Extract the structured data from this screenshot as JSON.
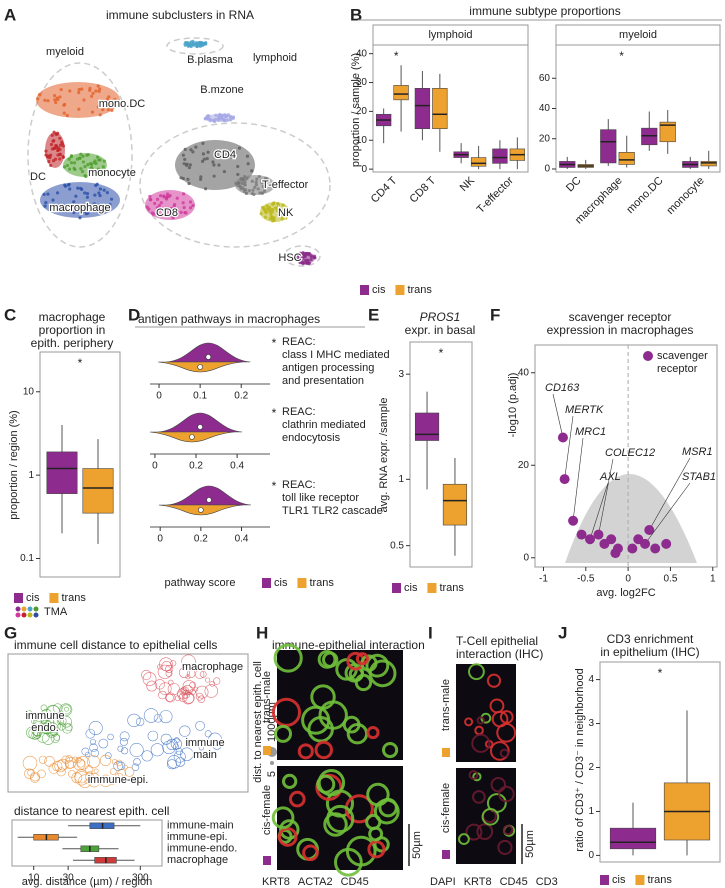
{
  "chart_data": [
    {
      "panel": "A",
      "type": "umap",
      "title": "immune subclusters in RNA",
      "groups": [
        "myeloid",
        "lymphoid"
      ],
      "clusters": [
        {
          "lines": [
            "B.plasma"
          ],
          "color": "#4aa3c8"
        },
        {
          "lines": [
            "mono.DC"
          ],
          "color": "#e2612a"
        },
        {
          "lines": [
            "B.mzone"
          ],
          "color": "#a6a8e6"
        },
        {
          "lines": [
            "CD4"
          ],
          "color": "#5a5a5a"
        },
        {
          "lines": [
            "DC"
          ],
          "color": "#c0262a"
        },
        {
          "lines": [
            "monocyte"
          ],
          "color": "#4e9e2e"
        },
        {
          "lines": [
            "T-effector"
          ],
          "color": "#7a7a7a"
        },
        {
          "lines": [
            "macrophage"
          ],
          "color": "#2b4fa8"
        },
        {
          "lines": [
            "CD8"
          ],
          "color": "#d03a9c"
        },
        {
          "lines": [
            "NK"
          ],
          "color": "#b9b81a"
        },
        {
          "lines": [
            "HSC"
          ],
          "color": "#8a2a8a"
        }
      ]
    },
    {
      "panel": "B",
      "type": "box",
      "title": "immune subtype proportions",
      "ylabel": "proportion / sample (%)",
      "legend": [
        {
          "name": "cis",
          "color": "#8e2b8e"
        },
        {
          "name": "trans",
          "color": "#eda12f"
        }
      ],
      "facets": [
        {
          "title": "lymphoid",
          "categories": [
            "CD4 T",
            "CD8 T",
            "NK",
            "T-effector"
          ],
          "ylim": [
            -1,
            43
          ],
          "yticks": [
            0,
            10,
            20,
            30,
            40
          ],
          "annotation": {
            "text": "*",
            "category": "CD4 T"
          },
          "series": [
            {
              "values": [
                [
                  9,
                  15,
                  17,
                  19,
                  21
                ],
                [
                  10,
                  14,
                  22,
                  28,
                  34
                ],
                [
                  2,
                  4,
                  5,
                  6,
                  9
                ],
                [
                  0,
                  2,
                  4,
                  7,
                  10
                ]
              ]
            },
            {
              "values": [
                [
                  13,
                  24,
                  26,
                  29,
                  36
                ],
                [
                  6,
                  14,
                  19,
                  28,
                  33
                ],
                [
                  0,
                  1,
                  2,
                  4,
                  8
                ],
                [
                  0,
                  3,
                  5,
                  7,
                  11
                ]
              ]
            }
          ]
        },
        {
          "title": "myeloid",
          "categories": [
            "DC",
            "macrophage",
            "mono.DC",
            "monocyte"
          ],
          "ylim": [
            -2,
            82
          ],
          "yticks": [
            0,
            20,
            40,
            60
          ],
          "annotation": {
            "text": "*",
            "category": "macrophage"
          },
          "series": [
            {
              "values": [
                [
                  0,
                  1,
                  3,
                  5,
                  8
                ],
                [
                  2,
                  4,
                  18,
                  26,
                  33
                ],
                [
                  12,
                  16,
                  22,
                  27,
                  38
                ],
                [
                  0,
                  1,
                  3,
                  5,
                  8
                ]
              ]
            },
            {
              "values": [
                [
                  0,
                  1,
                  2,
                  3,
                  6
                ],
                [
                  1,
                  3,
                  6,
                  11,
                  22
                ],
                [
                  10,
                  18,
                  29,
                  31,
                  39
                ],
                [
                  0,
                  2,
                  4,
                  5,
                  12
                ]
              ]
            }
          ]
        }
      ]
    },
    {
      "panel": "C",
      "type": "box",
      "title": [
        "macrophage",
        "proportion in",
        "epith. periphery"
      ],
      "ylabel": "proportion / region (%)",
      "legend": [
        {
          "name": "cis",
          "color": "#8e2b8e"
        },
        {
          "name": "trans",
          "color": "#eda12f"
        }
      ],
      "legend2": "TMA",
      "facets": [
        {
          "categories": [
            null
          ],
          "log": true,
          "ylim": [
            0.06,
            30
          ],
          "yticks": [
            0.1,
            1,
            10
          ],
          "annotation": {
            "text": "*"
          },
          "series": [
            {
              "values": [
                [
                  0.2,
                  0.6,
                  1.2,
                  1.9,
                  4
                ]
              ]
            },
            {
              "values": [
                [
                  0.15,
                  0.35,
                  0.7,
                  1.2,
                  2.7
                ]
              ]
            }
          ]
        }
      ]
    },
    {
      "panel": "D",
      "type": "violin",
      "title": "antigen pathways in macrophages",
      "xlabel": "pathway score",
      "legend": [
        {
          "name": "cis",
          "color": "#8e2b8e"
        },
        {
          "name": "trans",
          "color": "#eda12f"
        }
      ],
      "pathways": [
        {
          "lines": [
            "REAC:",
            "class I MHC mediated",
            "antigen processing",
            "and presentation"
          ],
          "annotation": "*",
          "xlim": [
            -0.022,
            0.27
          ],
          "xticks": [
            0,
            0.1,
            0.2
          ],
          "values": [
            0.12,
            0.1
          ]
        },
        {
          "lines": [
            "REAC:",
            "clathrin mediated",
            "endocytosis"
          ],
          "annotation": "*",
          "xlim": [
            -0.024,
            0.56
          ],
          "xticks": [
            0,
            0.2,
            0.4
          ],
          "values": [
            0.22,
            0.18
          ]
        },
        {
          "lines": [
            "REAC:",
            "toll like receptor",
            "TLR1 TLR2 cascade"
          ],
          "annotation": "*",
          "xlim": [
            -0.05,
            0.54
          ],
          "xticks": [
            0,
            0.2,
            0.4
          ],
          "values": [
            0.24,
            0.2
          ]
        }
      ]
    },
    {
      "panel": "E",
      "type": "box",
      "title": [
        "PROS1",
        "expr. in basal"
      ],
      "ylabel": "avg. RNA expr. /sample",
      "legend": [
        {
          "name": "cis",
          "color": "#8e2b8e"
        },
        {
          "name": "trans",
          "color": "#eda12f"
        }
      ],
      "facets": [
        {
          "categories": [
            null
          ],
          "log": true,
          "ylim": [
            0.4,
            4.2
          ],
          "yticks": [
            0.5,
            1,
            3
          ],
          "annotation": {
            "text": "*"
          },
          "series": [
            {
              "values": [
                [
                  0.9,
                  1.5,
                  1.6,
                  2.0,
                  2.5
                ]
              ]
            },
            {
              "values": [
                [
                  0.45,
                  0.62,
                  0.8,
                  0.95,
                  1.25
                ]
              ]
            }
          ]
        }
      ]
    },
    {
      "panel": "F",
      "type": "scatter",
      "title": [
        "scavenger receptor",
        "expression in macrophages"
      ],
      "xlabel": "avg. log2FC",
      "ylabel": "-log10 (p.adj)",
      "xlim": [
        -1.1,
        1.05
      ],
      "xticks": [
        -1,
        -0.5,
        0,
        0.5,
        1
      ],
      "ylim": [
        -2,
        46
      ],
      "yticks": [
        0,
        20,
        40
      ],
      "color": "#8e2b8e",
      "legend": [
        "scavenger",
        "receptor"
      ],
      "x": [
        -0.77,
        -0.75,
        -0.65,
        -0.35,
        -0.45,
        0.25,
        0.2,
        -0.55,
        -0.28,
        -0.2,
        -0.12,
        0.05,
        0.12,
        0.32,
        0.45,
        -0.15
      ],
      "y": [
        26,
        17,
        8,
        5,
        4,
        6,
        3,
        5,
        3,
        4,
        2,
        2,
        4,
        2,
        3,
        1
      ],
      "labels": [
        "CD163",
        "MERTK",
        "MRC1",
        "COLEC12",
        "AXL",
        "MSR1",
        "STAB1",
        null,
        null,
        null,
        null,
        null,
        null,
        null,
        null,
        null
      ]
    },
    {
      "panel": "G",
      "type": "umap",
      "title": "immune cell distance to epithelial cells",
      "clusters": [
        {
          "lines": [
            "macrophage"
          ],
          "color": "#d9505a"
        },
        {
          "lines": [
            "immune",
            "endo."
          ],
          "color": "#4ea33a"
        },
        {
          "lines": [
            "immune",
            "main"
          ],
          "color": "#3c6fc4"
        },
        {
          "lines": [
            "immune-epi."
          ],
          "color": "#e8892e"
        }
      ],
      "size_legend": {
        "title": "dist. to nearest epith. cell",
        "labels": [
          "5",
          "1000µm"
        ]
      }
    },
    {
      "type": "box",
      "title": "distance to nearest epith. cell",
      "xlabel": "avg. distance (µm) / region",
      "facets": [
        {
          "horizontal": true,
          "log": true,
          "xlim": [
            5,
            600
          ],
          "xticks": [
            10,
            30,
            300
          ],
          "categories": [
            "immune-main",
            "immune-epi.",
            "immune-endo.",
            "macrophage"
          ],
          "colors": [
            "#3c6fc4",
            "#e8892e",
            "#4ea33a",
            "#cf3a3a"
          ],
          "series": [
            {
              "values": [
                [
                  30,
                  60,
                  90,
                  130,
                  300
                ],
                [
                  6,
                  10,
                  15,
                  22,
                  40
                ],
                [
                  25,
                  45,
                  60,
                  80,
                  150
                ],
                [
                  35,
                  70,
                  100,
                  140,
                  250
                ]
              ]
            }
          ]
        }
      ]
    },
    {
      "panel": "H",
      "type": "image",
      "title": [
        "immune-epithelial interaction"
      ],
      "rows": [
        {
          "label": "trans-male",
          "color": "#eda12f"
        },
        {
          "label": "cis-female",
          "color": "#8e2b8e"
        }
      ],
      "scale": "50µm",
      "stains": [
        {
          "name": "KRT8",
          "color": "#6fbf3a"
        },
        {
          "name": "ACTA2",
          "color": "#9b3fa0"
        },
        {
          "name": "CD45",
          "color": "#d93030"
        }
      ]
    },
    {
      "panel": "I",
      "type": "image",
      "title": [
        "T-Cell epithelial",
        "interaction (IHC)"
      ],
      "rows": [
        {
          "label": "trans-male",
          "color": "#eda12f"
        },
        {
          "label": "cis-female",
          "color": "#8e2b8e"
        }
      ],
      "scale": "50µm",
      "stains": [
        {
          "name": "DAPI",
          "color": "#3a3aa8"
        },
        {
          "name": "KRT8",
          "color": "#d93030"
        },
        {
          "name": "CD45",
          "color": "#6fbf3a"
        },
        {
          "name": "CD3",
          "color": "#9b3fa0"
        }
      ]
    },
    {
      "panel": "J",
      "type": "box",
      "title": [
        "CD3 enrichment",
        "in epithelium (IHC)"
      ],
      "ylabel": "ratio of CD3⁺ / CD3⁻ in neighborhood",
      "legend": [
        {
          "name": "cis",
          "color": "#8e2b8e"
        },
        {
          "name": "trans",
          "color": "#eda12f"
        }
      ],
      "facets": [
        {
          "categories": [
            null
          ],
          "ylim": [
            -0.15,
            4.4
          ],
          "yticks": [
            0,
            1,
            2,
            3,
            4
          ],
          "annotation": {
            "text": "*"
          },
          "series": [
            {
              "values": [
                [
                  0,
                  0.15,
                  0.3,
                  0.62,
                  1.2
                ]
              ]
            },
            {
              "values": [
                [
                  0,
                  0.35,
                  1.0,
                  1.65,
                  3.3
                ]
              ]
            }
          ]
        }
      ]
    }
  ]
}
